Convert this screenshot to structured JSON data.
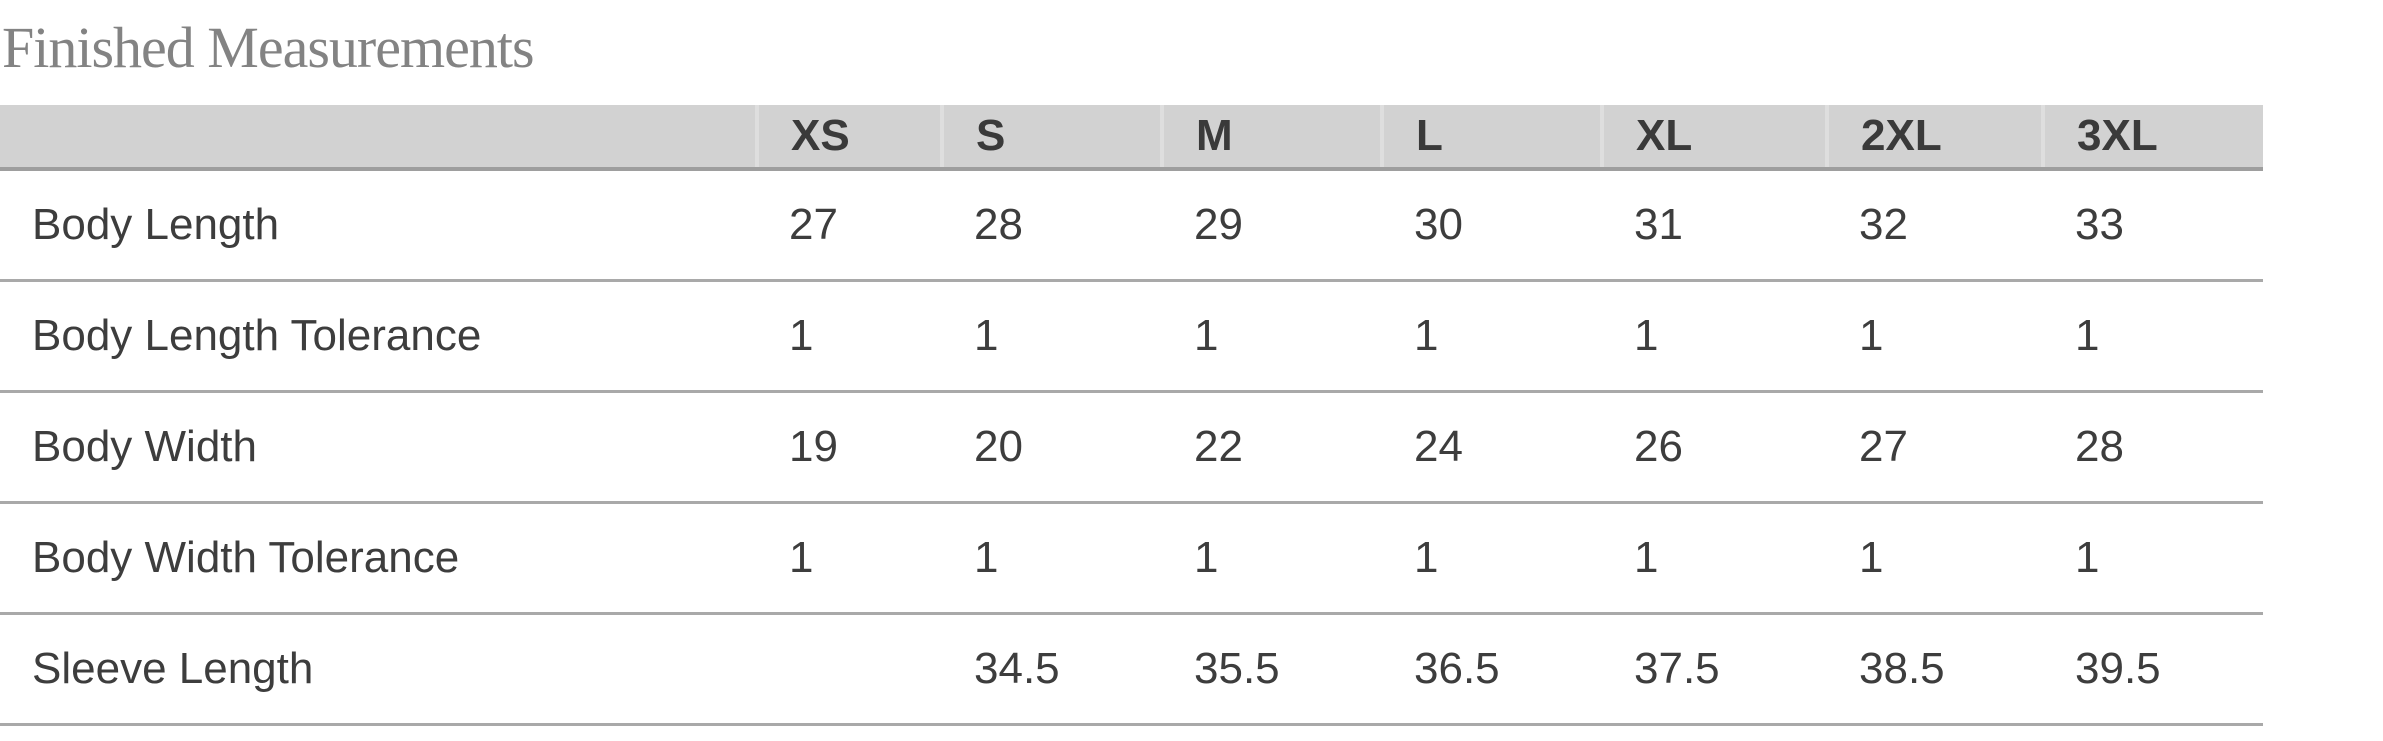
{
  "title": "Finished Measurements",
  "table": {
    "columns": [
      "",
      "XS",
      "S",
      "M",
      "L",
      "XL",
      "2XL",
      "3XL"
    ],
    "rows": [
      {
        "label": "Body Length",
        "values": [
          "27",
          "28",
          "29",
          "30",
          "31",
          "32",
          "33"
        ]
      },
      {
        "label": "Body Length Tolerance",
        "values": [
          "1",
          "1",
          "1",
          "1",
          "1",
          "1",
          "1"
        ]
      },
      {
        "label": "Body Width",
        "values": [
          "19",
          "20",
          "22",
          "24",
          "26",
          "27",
          "28"
        ]
      },
      {
        "label": "Body Width Tolerance",
        "values": [
          "1",
          "1",
          "1",
          "1",
          "1",
          "1",
          "1"
        ]
      },
      {
        "label": "Sleeve Length",
        "values": [
          "",
          "34.5",
          "35.5",
          "36.5",
          "37.5",
          "38.5",
          "39.5"
        ]
      }
    ]
  },
  "colors": {
    "title_text": "#838383",
    "header_background": "#d2d2d2",
    "header_divider": "#dedede",
    "header_bottom_border": "#9e9e9e",
    "row_border": "#a9a9a9",
    "cell_text": "#3d3d3d",
    "header_text": "#3a3a3a"
  }
}
